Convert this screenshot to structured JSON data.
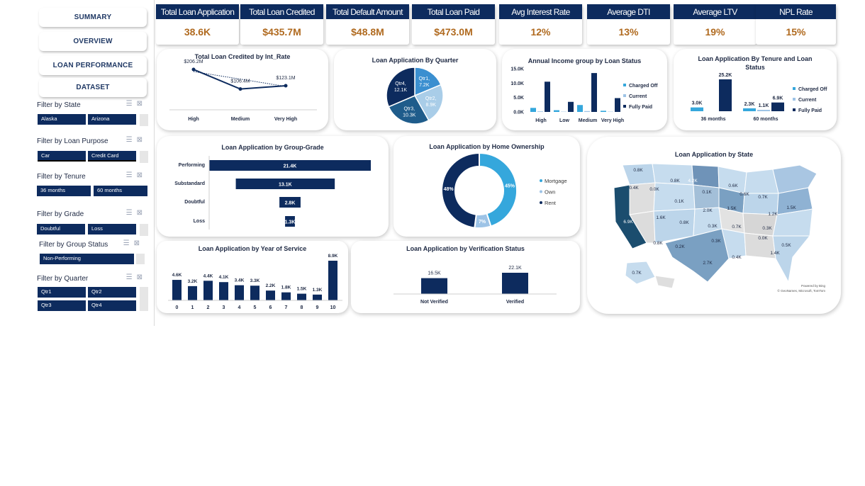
{
  "nav": {
    "summary": "SUMMARY",
    "overview": "OVERVIEW",
    "loan_performance": "LOAN PERFORMANCE",
    "dataset": "DATASET"
  },
  "filters": {
    "state": {
      "title": "Filter by State",
      "options": [
        "Alaska",
        "Arizona"
      ]
    },
    "purpose": {
      "title": "Filter by Loan Purpose",
      "options": [
        "Car",
        "Credit Card"
      ]
    },
    "tenure": {
      "title": "Filter by Tenure",
      "options": [
        "36 months",
        "60 months"
      ]
    },
    "grade": {
      "title": "Filter by Grade",
      "options": [
        "Doubtful",
        "Loss"
      ]
    },
    "group_status": {
      "title": "Filter by Group Status",
      "options": [
        "Non-Performing"
      ]
    },
    "quarter": {
      "title": "Filter by Quarter",
      "options": [
        "Qtr1",
        "Qtr2",
        "Qtr3",
        "Qtr4"
      ]
    }
  },
  "kpis": [
    {
      "title": "Total Loan Application",
      "value": "38.6K"
    },
    {
      "title": "Total Loan Credited",
      "value": "$435.7M"
    },
    {
      "title": "Total Default Amount",
      "value": "$48.8M"
    },
    {
      "title": "Total Loan Paid",
      "value": "$473.0M"
    },
    {
      "title": "Avg Interest Rate",
      "value": "12%"
    },
    {
      "title": "Average DTI",
      "value": "13%"
    },
    {
      "title": "Average LTV",
      "value": "19%"
    },
    {
      "title": "NPL Rate",
      "value": "15%"
    }
  ],
  "colors": {
    "navy": "#0d2b5e",
    "mid": "#1f5c8b",
    "light": "#9dc3e6",
    "cyan": "#35a7dc",
    "kpi_value": "#b06a1f"
  },
  "charts": {
    "int_rate": {
      "title": "Total Loan Credited by Int_Rate",
      "categories": [
        "High",
        "Medium",
        "Very High"
      ],
      "values": [
        206.2,
        106.4,
        123.1
      ],
      "labels": [
        "$206.2M",
        "$106.4M",
        "$123.1M"
      ]
    },
    "quarter_pie": {
      "title": "Loan Application By Quarter",
      "slices": [
        {
          "name": "Qtr1",
          "value": 7.2,
          "label": "7.2K",
          "color": "#3b8fd0"
        },
        {
          "name": "Qtr2",
          "value": 8.9,
          "label": "8.9K",
          "color": "#a9cde8"
        },
        {
          "name": "Qtr3",
          "value": 10.3,
          "label": "10.3K",
          "color": "#1f5c8b"
        },
        {
          "name": "Qtr4",
          "value": 12.1,
          "label": "12.1K",
          "color": "#0d2b5e"
        }
      ]
    },
    "income": {
      "title": "Annual Income group by Loan Status",
      "categories": [
        "High",
        "Low",
        "Medium",
        "Very High"
      ],
      "yticks": [
        "15.0K",
        "10.0K",
        "5.0K",
        "0.0K"
      ],
      "ymax": 15,
      "series": [
        {
          "name": "Charged Off",
          "color": "#35a7dc",
          "values": [
            1.4,
            0.6,
            2.4,
            0.4
          ]
        },
        {
          "name": "Current",
          "color": "#9dc3e6",
          "values": [
            0.2,
            0.1,
            0.3,
            0.1
          ]
        },
        {
          "name": "Fully Paid",
          "color": "#0d2b5e",
          "values": [
            10.5,
            3.5,
            13.5,
            4.8
          ]
        }
      ]
    },
    "tenure": {
      "title": "Loan Application By Tenure and Loan Status",
      "categories": [
        "36 months",
        "60 months"
      ],
      "series": [
        {
          "name": "Charged Off",
          "color": "#35a7dc",
          "values": [
            3.0,
            2.3
          ],
          "labels": [
            "3.0K",
            "2.3K"
          ]
        },
        {
          "name": "Current",
          "color": "#9dc3e6",
          "values": [
            0,
            1.1
          ],
          "labels": [
            "",
            "1.1K"
          ]
        },
        {
          "name": "Fully Paid",
          "color": "#0d2b5e",
          "values": [
            25.2,
            6.9
          ],
          "labels": [
            "25.2K",
            "6.9K"
          ]
        }
      ]
    },
    "grade": {
      "title": "Loan Application by Group-Grade",
      "categories": [
        "Performing",
        "Substandard",
        "Doubtful",
        "Loss"
      ],
      "values": [
        21.4,
        13.1,
        2.8,
        1.3
      ],
      "labels": [
        "21.4K",
        "13.1K",
        "2.8K",
        "1.3K"
      ]
    },
    "home": {
      "title": "Loan Application by Home Ownership",
      "slices": [
        {
          "name": "Mortgage",
          "value": 45,
          "label": "45%",
          "color": "#35a7dc"
        },
        {
          "name": "Own",
          "value": 7,
          "label": "7%",
          "color": "#9dc3e6"
        },
        {
          "name": "Rent",
          "value": 48,
          "label": "48%",
          "color": "#0d2b5e"
        }
      ]
    },
    "service": {
      "title": "Loan Application by Year of Service",
      "categories": [
        "0",
        "1",
        "2",
        "3",
        "4",
        "5",
        "6",
        "7",
        "8",
        "9",
        "10"
      ],
      "values": [
        4.6,
        3.2,
        4.4,
        4.1,
        3.4,
        3.3,
        2.2,
        1.8,
        1.5,
        1.3,
        8.9
      ],
      "labels": [
        "4.6K",
        "3.2K",
        "4.4K",
        "4.1K",
        "3.4K",
        "3.3K",
        "2.2K",
        "1.8K",
        "1.5K",
        "1.3K",
        "8.9K"
      ]
    },
    "verification": {
      "title": "Loan Application by Verification Status",
      "categories": [
        "Not Verified",
        "Verified"
      ],
      "values": [
        16.5,
        22.1
      ],
      "labels": [
        "16.5K",
        "22.1K"
      ]
    },
    "map": {
      "title": "Loan Application by State",
      "state_labels": [
        "0.8K",
        "0.4K",
        "0.0K",
        "0.8K",
        "4.2K",
        "0.6K",
        "0.6K",
        "0.1K",
        "0.1K",
        "0.7K",
        "6.9K",
        "1.6K",
        "2.0K",
        "1.5K",
        "1.2K",
        "1.5K",
        "0.8K",
        "0.3K",
        "0.7K",
        "0.3K",
        "0.8K",
        "0.2K",
        "0.3K",
        "0.0K",
        "0.5K",
        "2.7K",
        "1.4K",
        "0.4K",
        "0.7K"
      ],
      "credit_1": "Powered by Bing",
      "credit_2": "© GeoNames, Microsoft, TomTom"
    }
  }
}
